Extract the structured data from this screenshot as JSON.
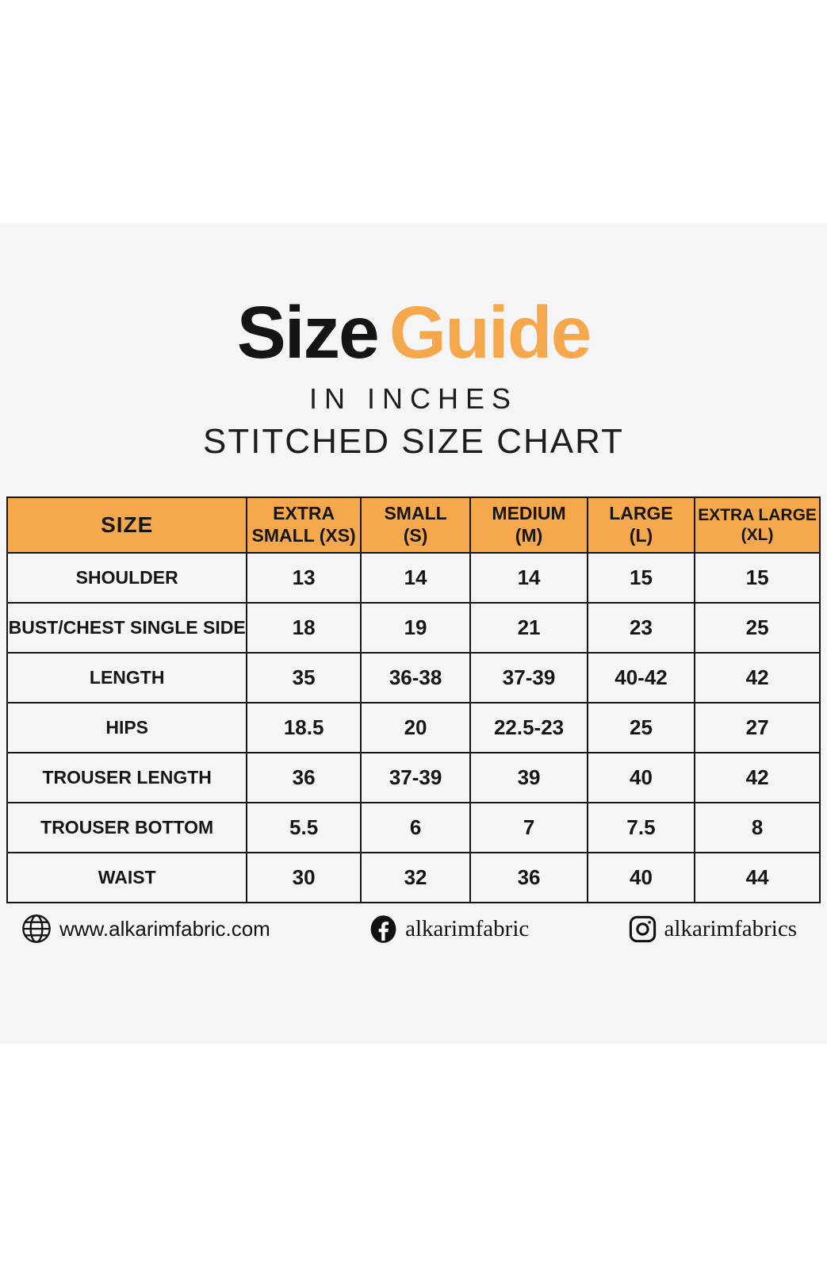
{
  "colors": {
    "page_bg": "#ffffff",
    "panel_bg": "#f5f5f7",
    "accent_orange": "#f4a84b",
    "ink": "#161616"
  },
  "header": {
    "title_black": "Size",
    "title_orange": "Guide",
    "subtitle_line1": "IN INCHES",
    "subtitle_line2": "STITCHED SIZE CHART"
  },
  "size_chart": {
    "columns": [
      {
        "lines": [
          "SIZE"
        ]
      },
      {
        "lines": [
          "EXTRA",
          "SMALL (XS)"
        ]
      },
      {
        "lines": [
          "SMALL",
          "(S)"
        ]
      },
      {
        "lines": [
          "MEDIUM",
          "(M)"
        ]
      },
      {
        "lines": [
          "LARGE",
          "(L)"
        ]
      },
      {
        "lines": [
          "EXTRA LARGE",
          "(XL)"
        ]
      }
    ],
    "rows": [
      {
        "label": "SHOULDER",
        "values": [
          "13",
          "14",
          "14",
          "15",
          "15"
        ]
      },
      {
        "label": "BUST/CHEST SINGLE SIDE",
        "values": [
          "18",
          "19",
          "21",
          "23",
          "25"
        ]
      },
      {
        "label": "LENGTH",
        "values": [
          "35",
          "36-38",
          "37-39",
          "40-42",
          "42"
        ]
      },
      {
        "label": "HIPS",
        "values": [
          "18.5",
          "20",
          "22.5-23",
          "25",
          "27"
        ]
      },
      {
        "label": "TROUSER LENGTH",
        "values": [
          "36",
          "37-39",
          "39",
          "40",
          "42"
        ]
      },
      {
        "label": "TROUSER BOTTOM",
        "values": [
          "5.5",
          "6",
          "7",
          "7.5",
          "8"
        ]
      },
      {
        "label": "WAIST",
        "values": [
          "30",
          "32",
          "36",
          "40",
          "44"
        ]
      }
    ]
  },
  "footer": {
    "website": {
      "icon": "globe-icon",
      "label": "www.alkarimfabric.com"
    },
    "facebook": {
      "icon": "facebook-icon",
      "label": "alkarimfabric"
    },
    "instagram": {
      "icon": "instagram-icon",
      "label": "alkarimfabrics"
    }
  },
  "chart_data": {
    "type": "table",
    "title": "Size Guide",
    "subtitle": [
      "IN INCHES",
      "STITCHED SIZE CHART"
    ],
    "columns": [
      "SIZE",
      "EXTRA SMALL (XS)",
      "SMALL (S)",
      "MEDIUM (M)",
      "LARGE (L)",
      "EXTRA LARGE (XL)"
    ],
    "rows": [
      [
        "SHOULDER",
        "13",
        "14",
        "14",
        "15",
        "15"
      ],
      [
        "BUST/CHEST SINGLE SIDE",
        "18",
        "19",
        "21",
        "23",
        "25"
      ],
      [
        "LENGTH",
        "35",
        "36-38",
        "37-39",
        "40-42",
        "42"
      ],
      [
        "HIPS",
        "18.5",
        "20",
        "22.5-23",
        "25",
        "27"
      ],
      [
        "TROUSER LENGTH",
        "36",
        "37-39",
        "39",
        "40",
        "42"
      ],
      [
        "TROUSER BOTTOM",
        "5.5",
        "6",
        "7",
        "7.5",
        "8"
      ],
      [
        "WAIST",
        "30",
        "32",
        "36",
        "40",
        "44"
      ]
    ],
    "layout_hints": {
      "header_fill": "#f4a84b",
      "grid": true,
      "units": "inches"
    }
  }
}
